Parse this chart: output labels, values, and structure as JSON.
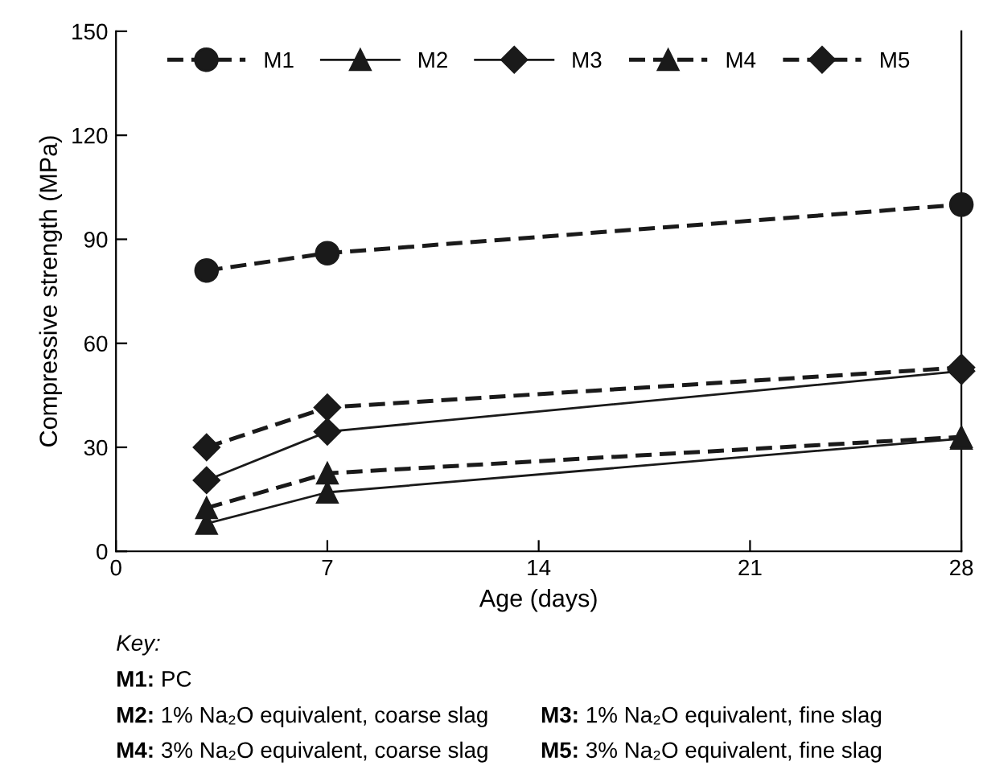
{
  "chart_data": {
    "type": "line",
    "xlabel": "Age (days)",
    "ylabel": "Compressive strength (MPa)",
    "x": [
      3,
      7,
      28
    ],
    "series": [
      {
        "name": "M1",
        "color": "#1a1a1a",
        "values": [
          81,
          86,
          100
        ],
        "marker": "circle",
        "line_style": "dashed"
      },
      {
        "name": "M2",
        "color": "#1a1a1a",
        "values": [
          8,
          17,
          32.5
        ],
        "marker": "triangle",
        "line_style": "solid"
      },
      {
        "name": "M3",
        "color": "#1a1a1a",
        "values": [
          20.5,
          34.5,
          52
        ],
        "marker": "diamond",
        "line_style": "solid"
      },
      {
        "name": "M4",
        "color": "#1a1a1a",
        "values": [
          12.5,
          22.5,
          33
        ],
        "marker": "triangle",
        "line_style": "dashed"
      },
      {
        "name": "M5",
        "color": "#1a1a1a",
        "values": [
          30,
          41.5,
          53
        ],
        "marker": "diamond",
        "line_style": "dashed"
      }
    ],
    "xlim": [
      0,
      28
    ],
    "xticks": [
      0,
      7,
      14,
      21,
      28
    ],
    "ylim": [
      0,
      150
    ],
    "yticks": [
      0,
      30,
      60,
      90,
      120,
      150
    ],
    "grid": false,
    "legend": "top",
    "annotations": [
      "Key:",
      "M1: PC",
      "M2: 1% Na₂O equivalent, coarse slag",
      "M3: 1% Na₂O equivalent, fine slag",
      "M4: 3% Na₂O equivalent, coarse slag",
      "M5: 3% Na₂O equivalent, fine slag"
    ]
  }
}
